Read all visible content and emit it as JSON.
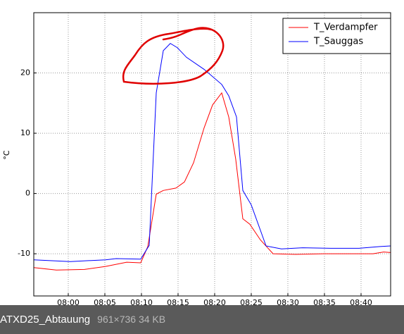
{
  "chart_data": {
    "type": "line",
    "y_label": "°C",
    "xlim": [
      475.29,
      524.04
    ],
    "ylim": [
      -17,
      30
    ],
    "xticks": [
      {
        "value": 480,
        "label": "08:00"
      },
      {
        "value": 485,
        "label": "08:05"
      },
      {
        "value": 490,
        "label": "08:10"
      },
      {
        "value": 495,
        "label": "08:15"
      },
      {
        "value": 500,
        "label": "08:20"
      },
      {
        "value": 505,
        "label": "08:25"
      },
      {
        "value": 510,
        "label": "08:30"
      },
      {
        "value": 515,
        "label": "08:35"
      },
      {
        "value": 520,
        "label": "08:40"
      }
    ],
    "yticks": [
      -10,
      0,
      10,
      20
    ],
    "grid": true,
    "legend": "upper right",
    "series": [
      {
        "name": "T_Verdampfer",
        "color": "#ff0000",
        "x": [
          475.29,
          478.37,
          482.21,
          485.1,
          487.98,
          489.9,
          490.87,
          492.02,
          492.98,
          494.71,
          495.87,
          497.12,
          498.56,
          499.71,
          500.96,
          501.92,
          502.88,
          503.85,
          504.81,
          506.25,
          507.98,
          511.06,
          514.9,
          518.75,
          521.63,
          523.08,
          524.04
        ],
        "values": [
          -12.3,
          -12.7,
          -12.6,
          -12.1,
          -11.4,
          -11.5,
          -8.8,
          -0.1,
          0.5,
          0.9,
          1.9,
          5.1,
          10.9,
          14.7,
          16.7,
          12.7,
          5.7,
          -4.2,
          -5.1,
          -7.7,
          -10,
          -10.1,
          -10,
          -10,
          -10,
          -9.7,
          -9.8
        ]
      },
      {
        "name": "T_Sauggas",
        "color": "#0000ff",
        "x": [
          475.29,
          480.29,
          485.1,
          486.54,
          489.9,
          491.06,
          492.02,
          492.98,
          493.94,
          494.9,
          496.15,
          498.56,
          500.96,
          501.92,
          502.98,
          503.85,
          505.0,
          507.02,
          509.13,
          512.02,
          515.87,
          519.71,
          522.6,
          524.04
        ],
        "values": [
          -11,
          -11.3,
          -11,
          -10.8,
          -10.9,
          -8.6,
          16.7,
          23.7,
          24.9,
          24.2,
          22.6,
          20.6,
          18.1,
          16.2,
          12.7,
          0.5,
          -1.9,
          -8.7,
          -9.2,
          -9,
          -9.1,
          -9.1,
          -8.8,
          -8.7
        ]
      }
    ]
  },
  "viewer": {
    "file_name": "ATXD25_Abtauung",
    "file_info": "961×736 34 KB"
  }
}
